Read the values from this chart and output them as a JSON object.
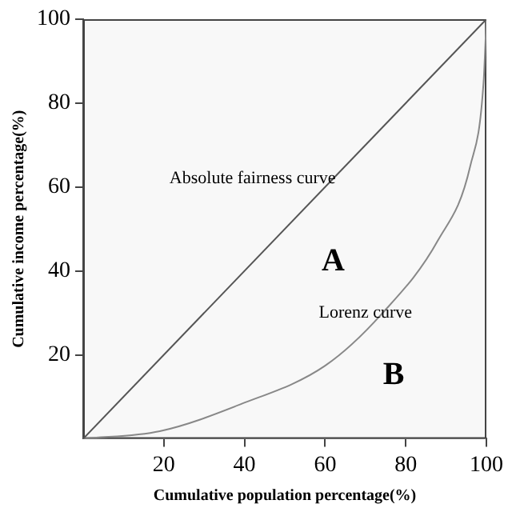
{
  "chart_data": {
    "type": "line",
    "xlabel": "Cumulative population percentage(%)",
    "ylabel": "Cumulative income percentage(%)",
    "xlim": [
      0,
      100
    ],
    "ylim": [
      0,
      100
    ],
    "xticks": [
      20,
      40,
      60,
      80,
      100
    ],
    "yticks": [
      20,
      40,
      60,
      80,
      100
    ],
    "grid": false,
    "legend": false,
    "marker": "none",
    "line_style": "solid",
    "series": [
      {
        "name": "Absolute fairness curve",
        "color": "#555555",
        "x": [
          0,
          100
        ],
        "values": [
          0,
          100
        ]
      },
      {
        "name": "Lorenz curve",
        "color": "#888888",
        "x": [
          0,
          19,
          39,
          60,
          74,
          88,
          96,
          99.3,
          100
        ],
        "values": [
          0,
          1.8,
          8.2,
          17.4,
          29.7,
          47.3,
          65,
          85,
          100
        ]
      }
    ],
    "annotations": [
      "A",
      "B"
    ]
  }
}
